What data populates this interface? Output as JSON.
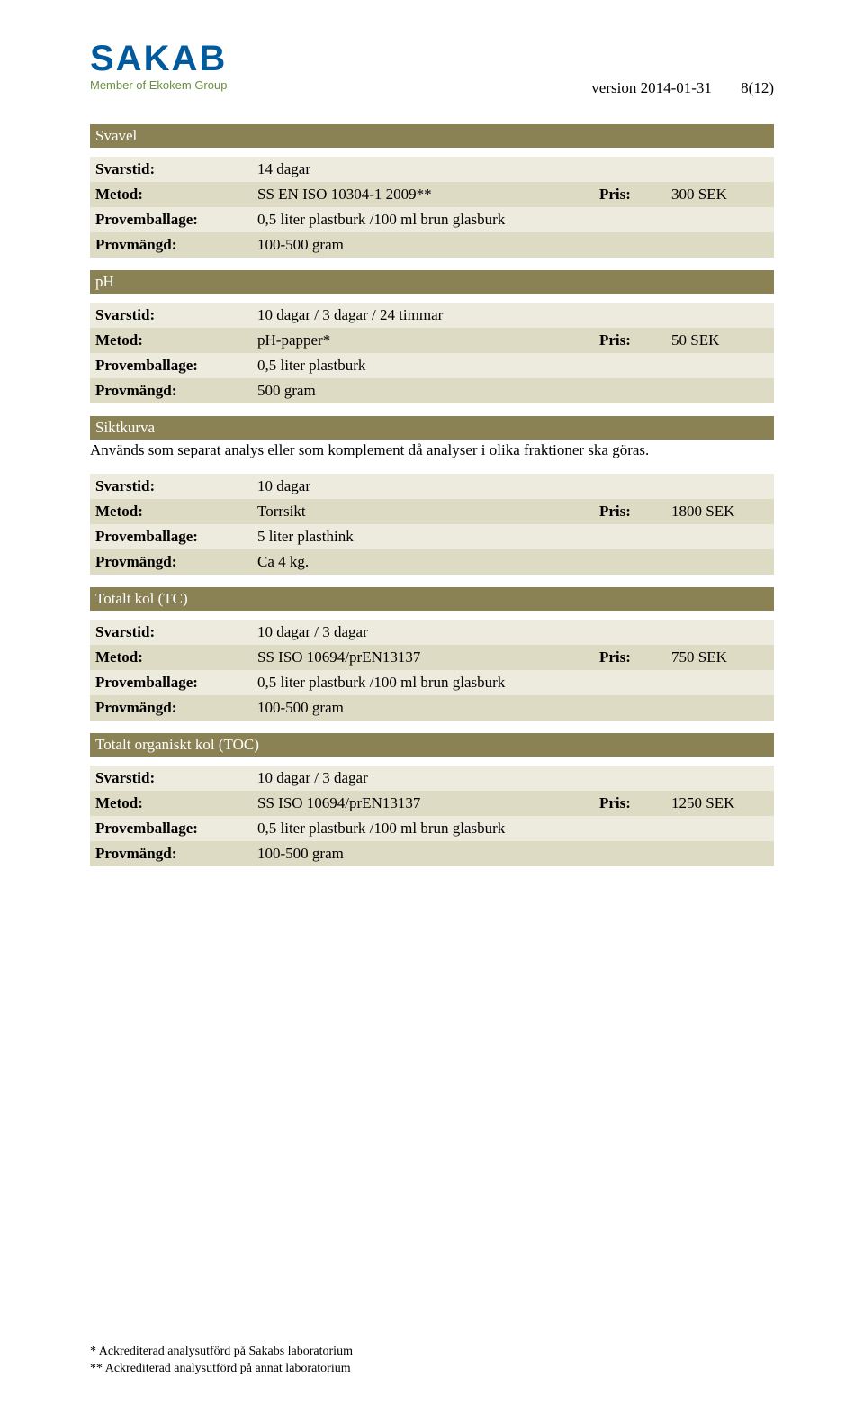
{
  "logo": {
    "primary": "SAKAB",
    "sub": "Member of Ekokem Group"
  },
  "header": {
    "version": "version 2014-01-31",
    "page_num": "8(12)"
  },
  "labels": {
    "svarstid": "Svarstid:",
    "metod": "Metod:",
    "provemballage": "Provemballage:",
    "provmangd": "Provmängd:",
    "pris": "Pris:"
  },
  "sections": {
    "svavel": {
      "title": "Svavel",
      "svarstid": "14 dagar",
      "metod": "SS EN ISO 10304-1 2009**",
      "pris": "300 SEK",
      "provemballage": "0,5 liter plastburk /100 ml brun glasburk",
      "provmangd": "100-500 gram"
    },
    "ph": {
      "title": "pH",
      "svarstid": "10 dagar / 3 dagar / 24 timmar",
      "metod": "pH-papper*",
      "pris": "50 SEK",
      "provemballage": "0,5 liter plastburk",
      "provmangd": "500 gram"
    },
    "siktkurva": {
      "title": "Siktkurva",
      "note": "Används som separat analys eller som komplement då analyser i olika fraktioner ska göras.",
      "svarstid": "10 dagar",
      "metod": "Torrsikt",
      "pris": "1800 SEK",
      "provemballage": "5 liter plasthink",
      "provmangd": "Ca 4 kg."
    },
    "tc": {
      "title": "Totalt kol (TC)",
      "svarstid": "10 dagar / 3 dagar",
      "metod": "SS ISO 10694/prEN13137",
      "pris": "750 SEK",
      "provemballage": "0,5 liter plastburk /100 ml brun glasburk",
      "provmangd": "100-500 gram"
    },
    "toc": {
      "title": "Totalt organiskt kol (TOC)",
      "svarstid": "10 dagar / 3 dagar",
      "metod": "SS ISO 10694/prEN13137",
      "pris": "1250 SEK",
      "provemballage": "0,5 liter plastburk /100 ml brun glasburk",
      "provmangd": "100-500 gram"
    }
  },
  "footer": {
    "line1": "* Ackrediterad analysutförd på Sakabs laboratorium",
    "line2": "** Ackrediterad analysutförd på annat laboratorium"
  },
  "colors": {
    "section_bar_bg": "#8a8154",
    "section_bar_fg": "#ffffff",
    "row_even": "#dedbc5",
    "row_odd": "#edebdd",
    "logo_blue": "#005a9c",
    "logo_green": "#6b8f3f"
  }
}
